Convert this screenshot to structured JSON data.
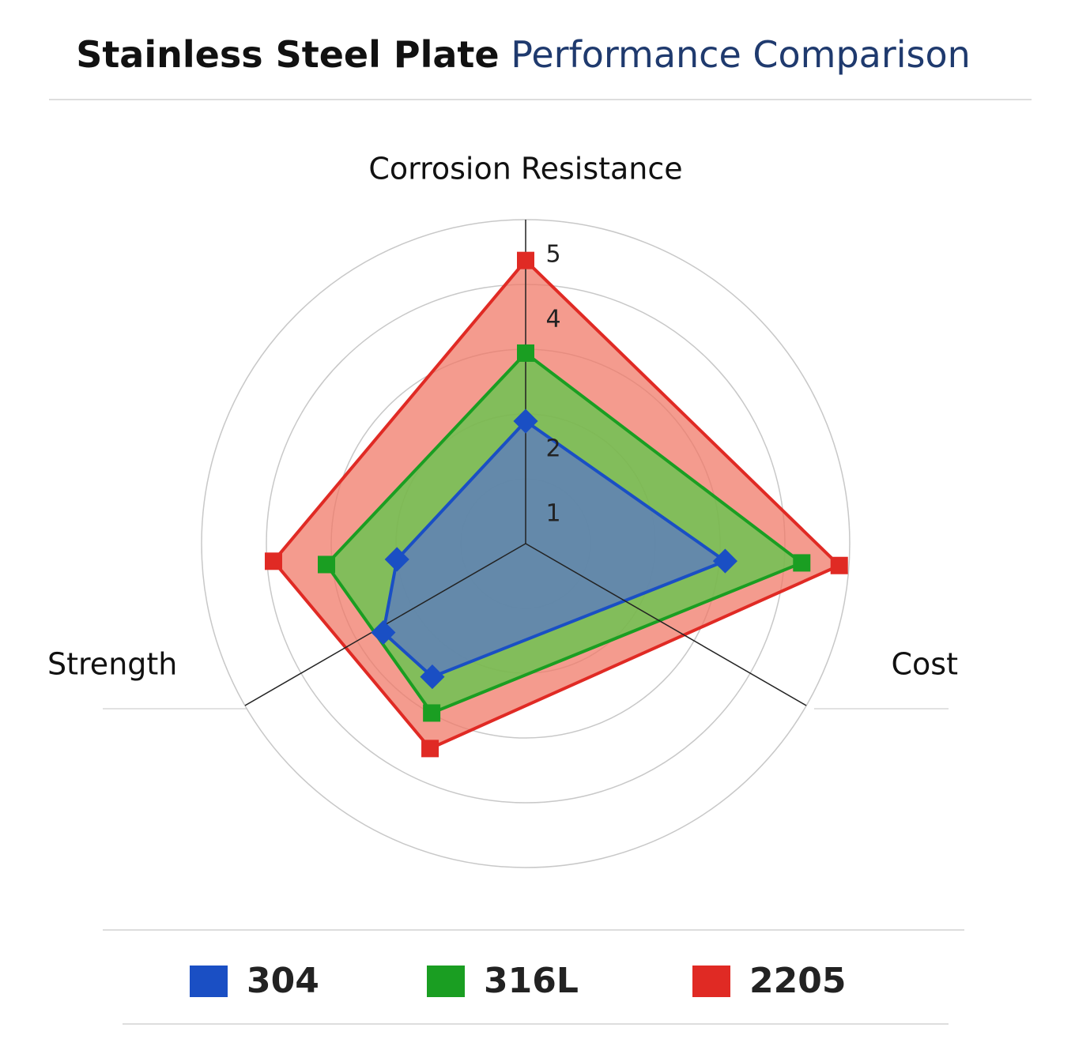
{
  "chart_data": {
    "type": "polar",
    "title": "Stainless Steel Plate",
    "subtitle": "Performance Comparison",
    "axes": [
      {
        "label": "Corrosion Resistance",
        "angle": 0
      },
      {
        "label": "Cost",
        "angle": 120
      },
      {
        "label": "Strength",
        "angle": 240
      }
    ],
    "rlim": [
      0,
      5
    ],
    "rings": [
      1,
      2,
      3,
      4,
      5
    ],
    "rticks": [
      1,
      2,
      4,
      5
    ],
    "series": [
      {
        "name": "2205",
        "color": "#e02a24",
        "fill": "#f07a68",
        "marker": "square",
        "theta": [
          0,
          94,
          205,
          266
        ],
        "values": [
          4.37,
          4.85,
          3.49,
          3.9
        ]
      },
      {
        "name": "316L",
        "color": "#1a9e22",
        "fill": "#5cc84a",
        "marker": "square",
        "theta": [
          0,
          94,
          209,
          264
        ],
        "values": [
          2.94,
          4.27,
          2.99,
          3.09
        ]
      },
      {
        "name": "304",
        "color": "#1a4fc4",
        "fill": "#5a78c4",
        "marker": "diamond",
        "theta": [
          0,
          95,
          215,
          238,
          263
        ],
        "values": [
          1.89,
          3.09,
          2.51,
          2.59,
          2.0
        ]
      }
    ]
  }
}
